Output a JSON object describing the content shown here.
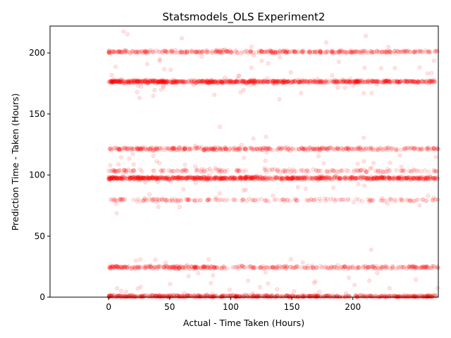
{
  "chart_data": {
    "type": "scatter",
    "title": "Statsmodels_OLS Experiment2",
    "xlabel": "Actual - Time Taken (Hours)",
    "ylabel": "Prediction Time - Taken (Hours)",
    "xlim": [
      -48,
      270
    ],
    "ylim": [
      0,
      222
    ],
    "xticks": [
      0,
      50,
      100,
      150,
      200
    ],
    "yticks": [
      0,
      50,
      100,
      150,
      200
    ],
    "grid": false,
    "marker_color": "#ff0000",
    "marker_edge_color": "#ff0000",
    "marker_alpha": 0.1,
    "x_range_of_points": [
      0,
      270
    ],
    "prediction_levels": [
      {
        "y": 0.5,
        "density": "very high"
      },
      {
        "y": 24.5,
        "density": "high"
      },
      {
        "y": 79.5,
        "density": "medium"
      },
      {
        "y": 97.5,
        "density": "very high"
      },
      {
        "y": 103.5,
        "density": "medium"
      },
      {
        "y": 121.5,
        "density": "high"
      },
      {
        "y": 176.5,
        "density": "very high"
      },
      {
        "y": 201,
        "density": "high"
      }
    ]
  }
}
